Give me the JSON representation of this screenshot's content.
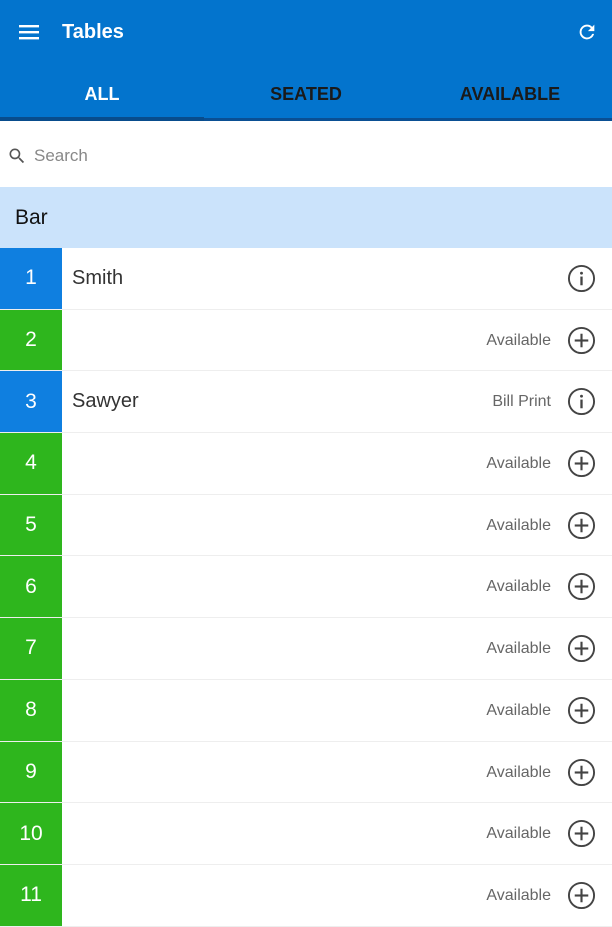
{
  "header": {
    "title": "Tables",
    "menu_icon": "menu-icon",
    "refresh_icon": "refresh-icon",
    "background": "#0374cd"
  },
  "tabs": [
    {
      "label": "ALL",
      "active": true
    },
    {
      "label": "SEATED",
      "active": false
    },
    {
      "label": "AVAILABLE",
      "active": false
    }
  ],
  "search": {
    "placeholder": "Search",
    "value": ""
  },
  "section": {
    "label": "Bar"
  },
  "colors": {
    "seated": "#0f7fe0",
    "available": "#2eb61d"
  },
  "tables": [
    {
      "number": "1",
      "name": "Smith",
      "status": "",
      "state": "seated",
      "icon": "info-icon"
    },
    {
      "number": "2",
      "name": "",
      "status": "Available",
      "state": "available",
      "icon": "add-circle-icon"
    },
    {
      "number": "3",
      "name": "Sawyer",
      "status": "Bill Print",
      "state": "seated",
      "icon": "info-icon"
    },
    {
      "number": "4",
      "name": "",
      "status": "Available",
      "state": "available",
      "icon": "add-circle-icon"
    },
    {
      "number": "5",
      "name": "",
      "status": "Available",
      "state": "available",
      "icon": "add-circle-icon"
    },
    {
      "number": "6",
      "name": "",
      "status": "Available",
      "state": "available",
      "icon": "add-circle-icon"
    },
    {
      "number": "7",
      "name": "",
      "status": "Available",
      "state": "available",
      "icon": "add-circle-icon"
    },
    {
      "number": "8",
      "name": "",
      "status": "Available",
      "state": "available",
      "icon": "add-circle-icon"
    },
    {
      "number": "9",
      "name": "",
      "status": "Available",
      "state": "available",
      "icon": "add-circle-icon"
    },
    {
      "number": "10",
      "name": "",
      "status": "Available",
      "state": "available",
      "icon": "add-circle-icon"
    },
    {
      "number": "11",
      "name": "",
      "status": "Available",
      "state": "available",
      "icon": "add-circle-icon"
    }
  ]
}
